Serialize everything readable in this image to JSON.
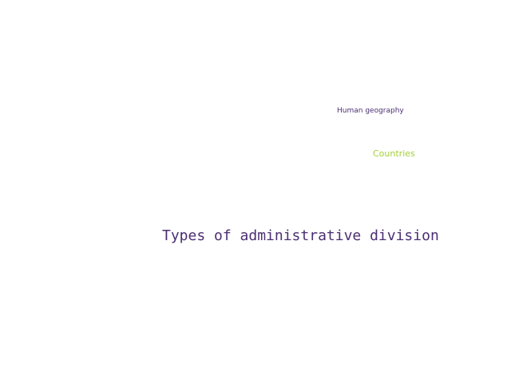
{
  "cloud": {
    "words": [
      {
        "text": "Human geography",
        "color": "#4b2f72"
      },
      {
        "text": "Countries",
        "color": "#a3cf3a"
      },
      {
        "text": "Types of administrative division",
        "color": "#4b2f72"
      }
    ]
  }
}
